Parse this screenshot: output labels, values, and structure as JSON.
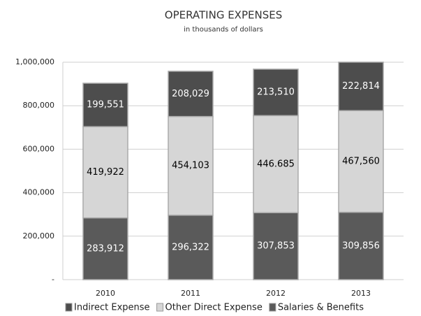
{
  "chart_data": {
    "type": "stacked_bar",
    "title": "OPERATING EXPENSES",
    "subtitle": "in thousands of dollars",
    "categories": [
      "2010",
      "2011",
      "2012",
      "2013"
    ],
    "series": [
      {
        "name": "Indirect Expense",
        "color": "#4d4d4d",
        "label_color": "#ffffff",
        "values": [
          199551,
          208029,
          213510,
          222814
        ],
        "value_labels": [
          "199,551",
          "208,029",
          "213,510",
          "222,814"
        ]
      },
      {
        "name": "Other Direct Expense",
        "color": "#d6d6d6",
        "label_color": "#000000",
        "values": [
          419922,
          454103,
          446685,
          467560
        ],
        "value_labels": [
          "419,922",
          "454,103",
          "446.685",
          "467,560"
        ]
      },
      {
        "name": "Salaries & Benefits",
        "color": "#5a5a5a",
        "label_color": "#ffffff",
        "values": [
          283912,
          296322,
          307853,
          309856
        ],
        "value_labels": [
          "283,912",
          "296,322",
          "307,853",
          "309,856"
        ]
      }
    ],
    "ylim": [
      0,
      1000000
    ],
    "yticks": [
      {
        "value": 0,
        "label": "-"
      },
      {
        "value": 200000,
        "label": "200,000"
      },
      {
        "value": 400000,
        "label": "400,000"
      },
      {
        "value": 600000,
        "label": "600,000"
      },
      {
        "value": 800000,
        "label": "800,000"
      },
      {
        "value": 1000000,
        "label": "1,000,000"
      }
    ],
    "grid": true
  }
}
